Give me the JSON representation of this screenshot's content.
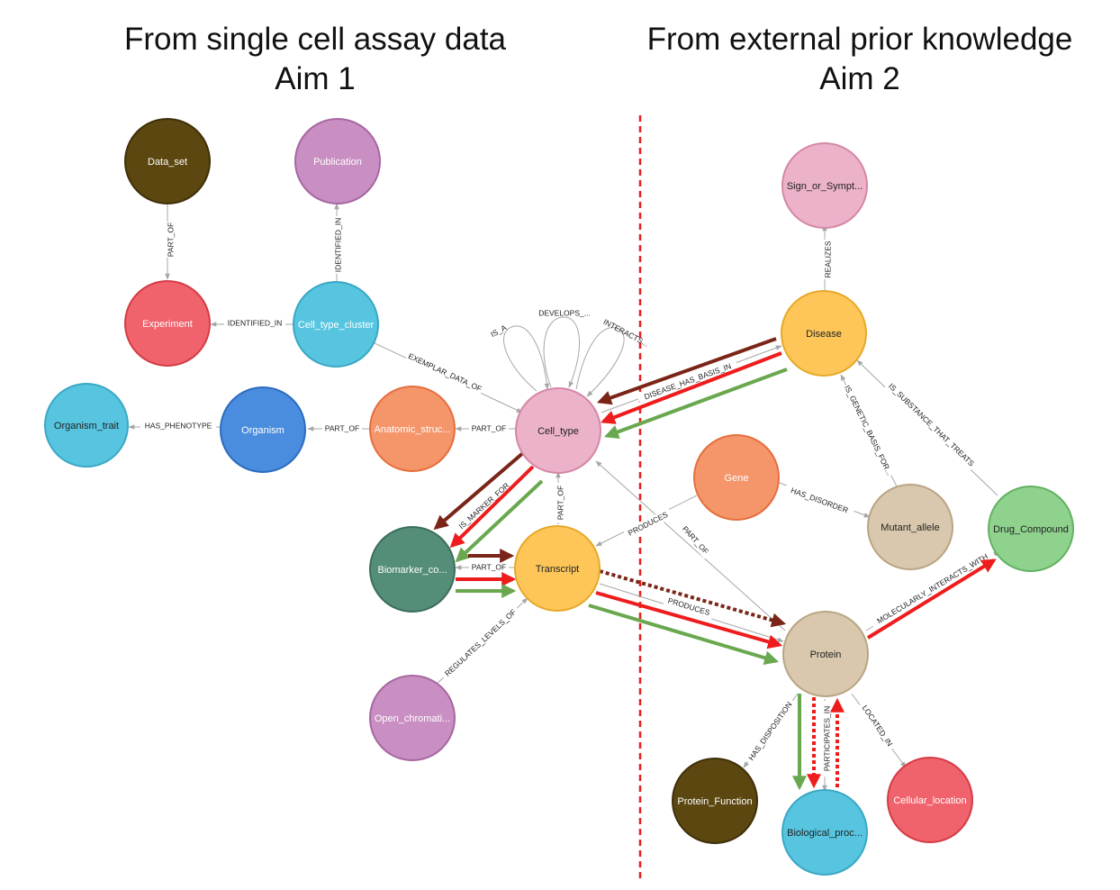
{
  "headings": {
    "left": [
      "From single cell assay data",
      "Aim 1"
    ],
    "right": [
      "From external prior knowledge",
      "Aim 2"
    ]
  },
  "nodes": {
    "data_set": {
      "label": "Data_set",
      "fill": "#5c4710",
      "stroke": "#3f300a",
      "text": "#ffffff"
    },
    "publication": {
      "label": "Publication",
      "fill": "#c98fc3",
      "stroke": "#a667a0",
      "text": "#ffffff"
    },
    "experiment": {
      "label": "Experiment",
      "fill": "#f0636c",
      "stroke": "#d43c46",
      "text": "#ffffff"
    },
    "cell_type_cluster": {
      "label": "Cell_type_cluster",
      "fill": "#57c5e0",
      "stroke": "#39a8c4",
      "text": "#ffffff"
    },
    "organism_trait": {
      "label": "Organism_trait",
      "fill": "#57c5e0",
      "stroke": "#39a8c4",
      "text": "#222222"
    },
    "organism": {
      "label": "Organism",
      "fill": "#4a8cdd",
      "stroke": "#2d6cbe",
      "text": "#ffffff"
    },
    "anatomic": {
      "label": "Anatomic_struc...",
      "fill": "#f5956a",
      "stroke": "#e56f3f",
      "text": "#ffffff"
    },
    "cell_type": {
      "label": "Cell_type",
      "fill": "#ebb2c9",
      "stroke": "#d587a7",
      "text": "#222222"
    },
    "biomarker": {
      "label": "Biomarker_co...",
      "fill": "#558e78",
      "stroke": "#3c6f5b",
      "text": "#ffffff"
    },
    "transcript": {
      "label": "Transcript",
      "fill": "#fec659",
      "stroke": "#e6a92a",
      "text": "#222222"
    },
    "open_chromatin": {
      "label": "Open_chromati...",
      "fill": "#c98fc3",
      "stroke": "#a667a0",
      "text": "#ffffff"
    },
    "sign": {
      "label": "Sign_or_Sympt...",
      "fill": "#ebb2c9",
      "stroke": "#d587a7",
      "text": "#222222"
    },
    "disease": {
      "label": "Disease",
      "fill": "#fec659",
      "stroke": "#e6a92a",
      "text": "#222222"
    },
    "gene": {
      "label": "Gene",
      "fill": "#f5956a",
      "stroke": "#e56f3f",
      "text": "#ffffff"
    },
    "mutant_allele": {
      "label": "Mutant_allele",
      "fill": "#d9c8ad",
      "stroke": "#b9a584",
      "text": "#222222"
    },
    "drug": {
      "label": "Drug_Compound",
      "fill": "#8ed28e",
      "stroke": "#62b262",
      "text": "#222222"
    },
    "protein": {
      "label": "Protein",
      "fill": "#d9c8ad",
      "stroke": "#b9a584",
      "text": "#222222"
    },
    "protein_function": {
      "label": "Protein_Function",
      "fill": "#5c4710",
      "stroke": "#3f300a",
      "text": "#ffffff"
    },
    "biological_process": {
      "label": "Biological_proc...",
      "fill": "#57c5e0",
      "stroke": "#39a8c4",
      "text": "#222222"
    },
    "cellular_location": {
      "label": "Cellular_location",
      "fill": "#f0636c",
      "stroke": "#d43c46",
      "text": "#ffffff"
    }
  },
  "edge_labels": {
    "part_of_dataset": "PART_OF",
    "identified_in_pub": "IDENTIFIED_IN",
    "identified_in_exp": "IDENTIFIED_IN",
    "exemplar": "EXEMPLAR_DATA_OF",
    "is_a": "IS_A",
    "develops": "DEVELOPS_...",
    "interacts": "INTERACTS...",
    "has_phenotype": "HAS_PHENOTYPE",
    "part_of_org": "PART_OF",
    "part_of_anat": "PART_OF",
    "disease_basis": "DISEASE_HAS_BASIS_IN",
    "realizes": "REALIZES",
    "genetic_basis": "IS_GENETIC_BASIS_FOR...",
    "substance_treats": "IS_SUBSTANCE_THAT_TREATS",
    "is_marker": "IS_MARKER_FOR",
    "part_of_transcript": "PART_OF",
    "part_of_biomarker": "PART_OF",
    "part_of_protein": "PART_OF",
    "produces_gene": "PRODUCES",
    "has_disorder": "HAS_DISORDER",
    "produces_protein": "PRODUCES",
    "regulates": "REGULATES_LEVELS_OF",
    "molecular": "MOLECULARLY_INTERACTS_WITH",
    "has_disposition": "HAS_DISPOSITION",
    "participates": "PARTICIPATES_IN",
    "located_in": "LOCATED_IN"
  },
  "colors": {
    "divider": "#e8201c",
    "path_red": "#ee1c1c",
    "path_brown": "#7b2518",
    "path_green": "#6aa84f",
    "edge_gray": "#a7a7a7"
  }
}
